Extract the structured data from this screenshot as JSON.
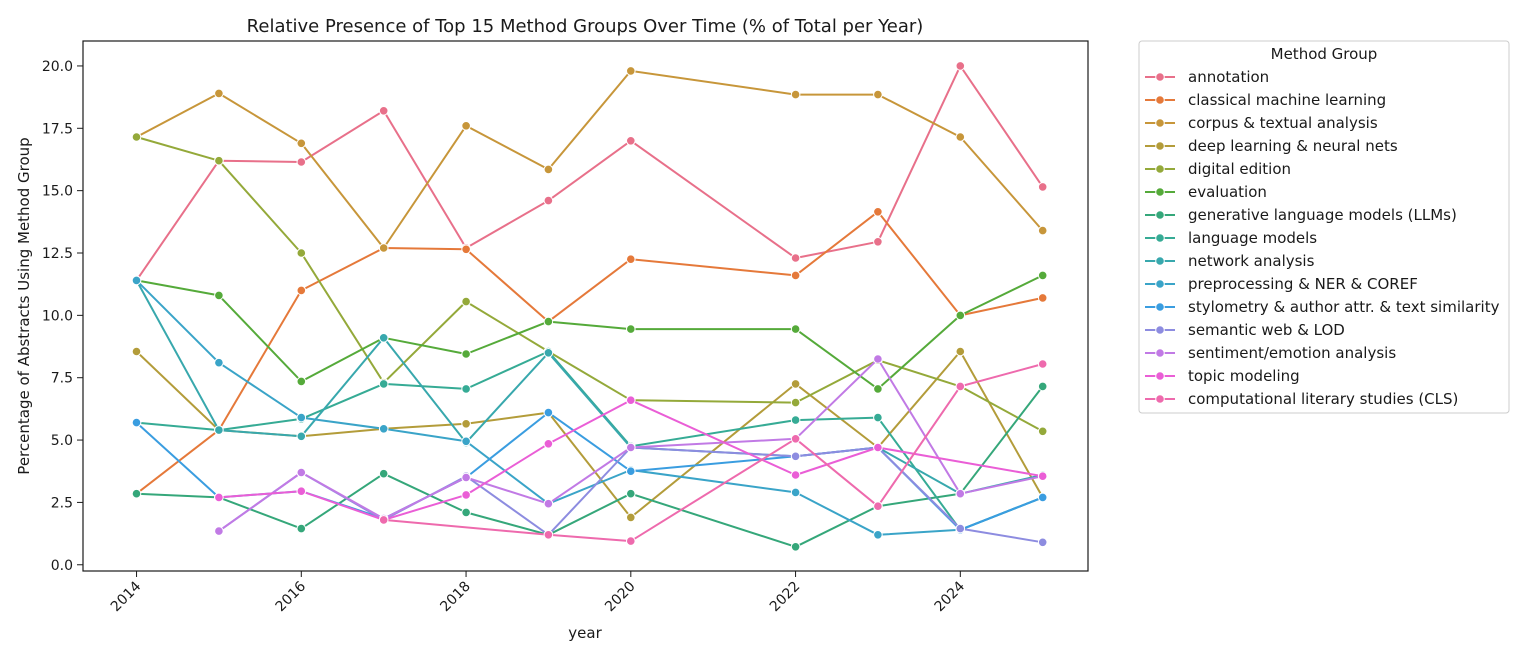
{
  "chart_data": {
    "type": "line",
    "title": "Relative Presence of Top 15 Method Groups Over Time (% of Total per Year)",
    "xlabel": "year",
    "ylabel": "Percentage of Abstracts Using Method Group",
    "xlim": [
      2013.35,
      2025.55
    ],
    "ylim": [
      -0.25,
      21.0
    ],
    "x_ticks": [
      2014,
      2016,
      2018,
      2020,
      2022,
      2024
    ],
    "y_ticks": [
      "0.0",
      "2.5",
      "5.0",
      "7.5",
      "10.0",
      "12.5",
      "15.0",
      "17.5",
      "20.0"
    ],
    "grid": false,
    "legend": {
      "title": "Method Group",
      "placement": "outside-right"
    },
    "series": [
      {
        "name": "annotation",
        "color": "#e8708a",
        "points": [
          [
            2014,
            11.4
          ],
          [
            2015,
            16.2
          ],
          [
            2016,
            16.15
          ],
          [
            2017,
            18.2
          ],
          [
            2018,
            12.7
          ],
          [
            2019,
            14.6
          ],
          [
            2020,
            17.0
          ],
          [
            2022,
            12.3
          ],
          [
            2023,
            12.95
          ],
          [
            2024,
            20.0
          ],
          [
            2025,
            15.15
          ]
        ]
      },
      {
        "name": "classical machine learning",
        "color": "#e5793a",
        "points": [
          [
            2014,
            2.85
          ],
          [
            2015,
            5.4
          ],
          [
            2016,
            11.0
          ],
          [
            2017,
            12.7
          ],
          [
            2018,
            12.65
          ],
          [
            2019,
            9.75
          ],
          [
            2020,
            12.25
          ],
          [
            2022,
            11.6
          ],
          [
            2023,
            14.15
          ],
          [
            2024,
            10.0
          ],
          [
            2025,
            10.7
          ]
        ]
      },
      {
        "name": "corpus & textual analysis",
        "color": "#c7963a",
        "points": [
          [
            2014,
            17.15
          ],
          [
            2015,
            18.9
          ],
          [
            2016,
            16.9
          ],
          [
            2017,
            12.7
          ],
          [
            2018,
            17.6
          ],
          [
            2019,
            15.85
          ],
          [
            2020,
            19.8
          ],
          [
            2022,
            18.85
          ],
          [
            2023,
            18.85
          ],
          [
            2024,
            17.15
          ],
          [
            2025,
            13.4
          ]
        ]
      },
      {
        "name": "deep learning & neural nets",
        "color": "#b39c3a",
        "points": [
          [
            2014,
            8.55
          ],
          [
            2015,
            5.4
          ],
          [
            2016,
            5.15
          ],
          [
            2017,
            5.45
          ],
          [
            2018,
            5.65
          ],
          [
            2019,
            6.1
          ],
          [
            2020,
            1.9
          ],
          [
            2022,
            7.25
          ],
          [
            2023,
            4.7
          ],
          [
            2024,
            8.55
          ],
          [
            2025,
            2.7
          ]
        ]
      },
      {
        "name": "digital edition",
        "color": "#94a93a",
        "points": [
          [
            2014,
            17.15
          ],
          [
            2015,
            16.2
          ],
          [
            2016,
            12.5
          ],
          [
            2017,
            7.3
          ],
          [
            2018,
            10.55
          ],
          [
            2019,
            8.55
          ],
          [
            2020,
            6.6
          ],
          [
            2022,
            6.5
          ],
          [
            2023,
            8.2
          ],
          [
            2024,
            7.15
          ],
          [
            2025,
            5.35
          ]
        ]
      },
      {
        "name": "evaluation",
        "color": "#55aa3a",
        "points": [
          [
            2014,
            11.4
          ],
          [
            2015,
            10.8
          ],
          [
            2016,
            7.35
          ],
          [
            2017,
            9.1
          ],
          [
            2018,
            8.45
          ],
          [
            2019,
            9.75
          ],
          [
            2020,
            9.45
          ],
          [
            2022,
            9.45
          ],
          [
            2023,
            7.05
          ],
          [
            2024,
            10.0
          ],
          [
            2025,
            11.6
          ]
        ]
      },
      {
        "name": "generative language models (LLMs)",
        "color": "#35a77a",
        "points": [
          [
            2014,
            2.85
          ],
          [
            2015,
            2.7
          ],
          [
            2016,
            1.45
          ],
          [
            2017,
            3.65
          ],
          [
            2018,
            2.1
          ],
          [
            2019,
            1.2
          ],
          [
            2020,
            2.85
          ],
          [
            2022,
            0.72
          ],
          [
            2023,
            2.35
          ],
          [
            2024,
            2.85
          ],
          [
            2025,
            7.15
          ]
        ]
      },
      {
        "name": "language models",
        "color": "#36ab95",
        "points": [
          [
            2014,
            5.7
          ],
          [
            2015,
            5.4
          ],
          [
            2016,
            5.85
          ],
          [
            2017,
            7.25
          ],
          [
            2018,
            7.05
          ],
          [
            2019,
            8.55
          ],
          [
            2020,
            4.75
          ],
          [
            2022,
            5.8
          ],
          [
            2023,
            5.9
          ],
          [
            2024,
            1.4
          ],
          [
            2025,
            2.7
          ]
        ]
      },
      {
        "name": "network analysis",
        "color": "#38a8ad",
        "points": [
          [
            2014,
            11.4
          ],
          [
            2015,
            5.4
          ],
          [
            2016,
            5.15
          ],
          [
            2017,
            9.1
          ],
          [
            2018,
            4.9
          ],
          [
            2019,
            8.5
          ],
          [
            2020,
            4.7
          ],
          [
            2022,
            4.35
          ],
          [
            2023,
            4.7
          ],
          [
            2024,
            2.85
          ],
          [
            2025,
            3.6
          ]
        ]
      },
      {
        "name": "preprocessing & NER & COREF",
        "color": "#3aa4c8",
        "points": [
          [
            2014,
            11.4
          ],
          [
            2015,
            8.1
          ],
          [
            2016,
            5.9
          ],
          [
            2017,
            5.45
          ],
          [
            2018,
            4.95
          ],
          [
            2019,
            2.45
          ],
          [
            2020,
            3.8
          ],
          [
            2022,
            2.9
          ],
          [
            2023,
            1.2
          ],
          [
            2024,
            1.4
          ],
          [
            2025,
            2.7
          ]
        ]
      },
      {
        "name": "stylometry & author attr. & text similarity",
        "color": "#3a9de0",
        "points": [
          [
            2014,
            5.7
          ],
          [
            2015,
            2.7
          ],
          [
            2016,
            2.95
          ],
          [
            2017,
            1.85
          ],
          [
            2018,
            3.5
          ],
          [
            2019,
            6.1
          ],
          [
            2020,
            3.75
          ],
          [
            2022,
            4.35
          ],
          [
            2023,
            4.7
          ],
          [
            2024,
            1.4
          ],
          [
            2025,
            2.7
          ]
        ]
      },
      {
        "name": "semantic web & LOD",
        "color": "#8d8ce0",
        "points": [
          [
            2015,
            1.35
          ],
          [
            2016,
            3.7
          ],
          [
            2017,
            1.8
          ],
          [
            2018,
            3.55
          ],
          [
            2019,
            1.2
          ],
          [
            2020,
            4.7
          ],
          [
            2022,
            4.35
          ],
          [
            2023,
            4.7
          ],
          [
            2024,
            1.45
          ],
          [
            2025,
            0.9
          ]
        ]
      },
      {
        "name": "sentiment/emotion analysis",
        "color": "#c17ae5",
        "points": [
          [
            2015,
            1.35
          ],
          [
            2016,
            3.7
          ],
          [
            2017,
            1.85
          ],
          [
            2018,
            3.5
          ],
          [
            2019,
            2.45
          ],
          [
            2020,
            4.7
          ],
          [
            2022,
            5.05
          ],
          [
            2023,
            8.25
          ],
          [
            2024,
            2.85
          ],
          [
            2025,
            3.55
          ]
        ]
      },
      {
        "name": "topic modeling",
        "color": "#ea5ed6",
        "points": [
          [
            2015,
            2.7
          ],
          [
            2016,
            2.95
          ],
          [
            2017,
            1.8
          ],
          [
            2018,
            2.8
          ],
          [
            2019,
            4.85
          ],
          [
            2020,
            6.6
          ],
          [
            2022,
            3.6
          ],
          [
            2023,
            4.7
          ],
          [
            2025,
            3.55
          ]
        ]
      },
      {
        "name": "computational literary studies (CLS)",
        "color": "#ee6aad",
        "points": [
          [
            2017,
            1.8
          ],
          [
            2019,
            1.2
          ],
          [
            2020,
            0.95
          ],
          [
            2022,
            5.05
          ],
          [
            2023,
            2.35
          ],
          [
            2024,
            7.15
          ],
          [
            2025,
            8.05
          ]
        ]
      }
    ]
  }
}
